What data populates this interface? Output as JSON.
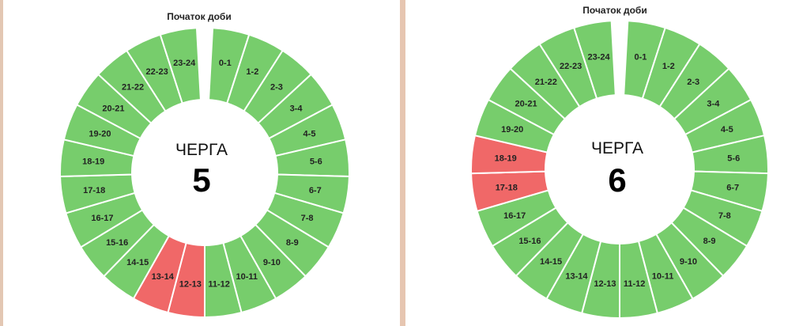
{
  "colors": {
    "on": "#77cd6c",
    "off": "#f06868",
    "background": "#ffffff",
    "divider": "#e6c6b1"
  },
  "hours": [
    "0-1",
    "1-2",
    "2-3",
    "3-4",
    "4-5",
    "5-6",
    "6-7",
    "7-8",
    "8-9",
    "9-10",
    "10-11",
    "11-12",
    "12-13",
    "13-14",
    "14-15",
    "15-16",
    "16-17",
    "17-18",
    "18-19",
    "19-20",
    "20-21",
    "21-22",
    "22-23",
    "23-24"
  ],
  "charts": [
    {
      "start_label": "Початок доби",
      "title": "ЧЕРГА",
      "queue_number": "5",
      "outage_hours": [
        "12-13",
        "13-14"
      ]
    },
    {
      "start_label": "Початок доби",
      "title": "ЧЕРГА",
      "queue_number": "6",
      "outage_hours": [
        "17-18",
        "18-19"
      ]
    }
  ]
}
